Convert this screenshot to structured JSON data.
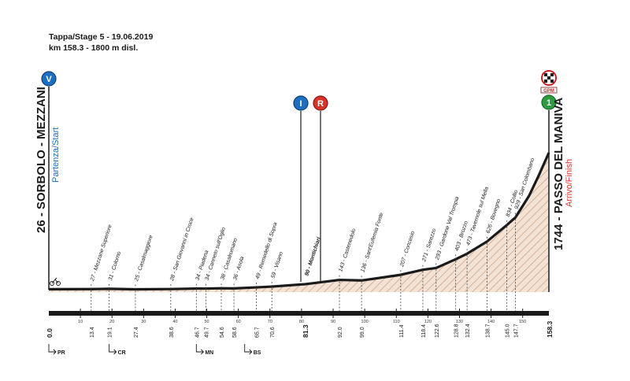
{
  "header": {
    "stage": "Tappa/Stage 5 - 19.06.2019",
    "distance": "km 158.3 - 1800 m disl."
  },
  "start": {
    "name": "26 - SORBOLO - MEZZANI",
    "label": "Partenza/Start",
    "icon_letter": "V",
    "color": "#1e6fc0"
  },
  "finish": {
    "name": "1744 - PASSO DEL MANIVA",
    "label": "Arrivo/Finish",
    "icon_letter": "1",
    "badge": "GPM",
    "color": "#e03a2f",
    "gpm_color": "#2e9b3f"
  },
  "markers": [
    {
      "letter": "I",
      "km": 81.3,
      "color": "#1e6fc0"
    },
    {
      "letter": "R",
      "km": 86.0,
      "color": "#d8322a"
    }
  ],
  "stage_notes": [
    {
      "text": "PR",
      "km": 0.0
    },
    {
      "text": "CR",
      "km": 19.1
    },
    {
      "text": "MN",
      "km": 46.7
    },
    {
      "text": "BS",
      "km": 62.0
    }
  ],
  "colors": {
    "fill": "#f4e3d4",
    "hatch": "#caa68e",
    "line": "#1a1a1a",
    "axis": "#1a1a1a"
  },
  "chart_data": {
    "type": "area",
    "xlabel": "",
    "ylabel": "",
    "xlim": [
      0,
      158.3
    ],
    "km_ticks": [
      10,
      20,
      30,
      40,
      50,
      60,
      70,
      80,
      90,
      100,
      110,
      120,
      130,
      140,
      150
    ],
    "profile": [
      [
        0,
        26
      ],
      [
        13.4,
        27
      ],
      [
        19.1,
        31
      ],
      [
        27.4,
        25
      ],
      [
        38.6,
        28
      ],
      [
        46.7,
        34
      ],
      [
        49.7,
        34
      ],
      [
        54.6,
        38
      ],
      [
        58.6,
        36
      ],
      [
        65.7,
        49
      ],
      [
        70.6,
        59
      ],
      [
        81.3,
        90
      ],
      [
        92.0,
        143
      ],
      [
        99.0,
        136
      ],
      [
        111.4,
        207
      ],
      [
        118.4,
        271
      ],
      [
        122.6,
        293
      ],
      [
        128.8,
        403
      ],
      [
        132.4,
        473
      ],
      [
        138.7,
        626
      ],
      [
        145.0,
        834
      ],
      [
        147.7,
        929
      ],
      [
        152.0,
        1200
      ],
      [
        155.0,
        1450
      ],
      [
        158.3,
        1744
      ]
    ],
    "locations": [
      {
        "km": 13.4,
        "km_label": "13.4",
        "name": "27 - Mezzane Superiore"
      },
      {
        "km": 19.1,
        "km_label": "19.1",
        "name": "31 - Colorno"
      },
      {
        "km": 27.4,
        "km_label": "27.4",
        "name": "25 - Casalmaggiore"
      },
      {
        "km": 38.6,
        "km_label": "38.6",
        "name": "28 - San Giovanni in Croce"
      },
      {
        "km": 46.7,
        "km_label": "46.7",
        "name": "34 - Piadena"
      },
      {
        "km": 49.7,
        "km_label": "49.7",
        "name": "34 - Canneto sull'Oglio"
      },
      {
        "km": 54.6,
        "km_label": "54.6",
        "name": "38 - Casalromano"
      },
      {
        "km": 58.6,
        "km_label": "58.6",
        "name": "36 - Asola"
      },
      {
        "km": 65.7,
        "km_label": "65.7",
        "name": "49 - Remedello di Sopra"
      },
      {
        "km": 70.6,
        "km_label": "70.6",
        "name": "59 - Visano"
      },
      {
        "km": 81.3,
        "km_label": "81.3",
        "name": "90 - Montichiari",
        "major": true
      },
      {
        "km": 92.0,
        "km_label": "92.0",
        "name": "143 - Castenedolo"
      },
      {
        "km": 99.0,
        "km_label": "99.0",
        "name": "136 - Sant'Eufemia Fonte"
      },
      {
        "km": 111.4,
        "km_label": "111.4",
        "name": "207 - Concesio"
      },
      {
        "km": 118.4,
        "km_label": "118.4",
        "name": "271 - Sarezzo"
      },
      {
        "km": 122.6,
        "km_label": "122.6",
        "name": "293 - Gardone Val Trompia"
      },
      {
        "km": 128.8,
        "km_label": "128.8",
        "name": "403 - Brozzo"
      },
      {
        "km": 132.4,
        "km_label": "132.4",
        "name": "473 - Tavernole sul Mella"
      },
      {
        "km": 138.7,
        "km_label": "138.7",
        "name": "626 - Bovegno"
      },
      {
        "km": 145.0,
        "km_label": "145.0",
        "name": "834 - Collio"
      },
      {
        "km": 147.7,
        "km_label": "147.7",
        "name": "929 - San Colombano"
      }
    ],
    "end_labels": [
      {
        "km": 0.0,
        "km_label": "0.0"
      },
      {
        "km": 158.3,
        "km_label": "158.3"
      }
    ]
  }
}
